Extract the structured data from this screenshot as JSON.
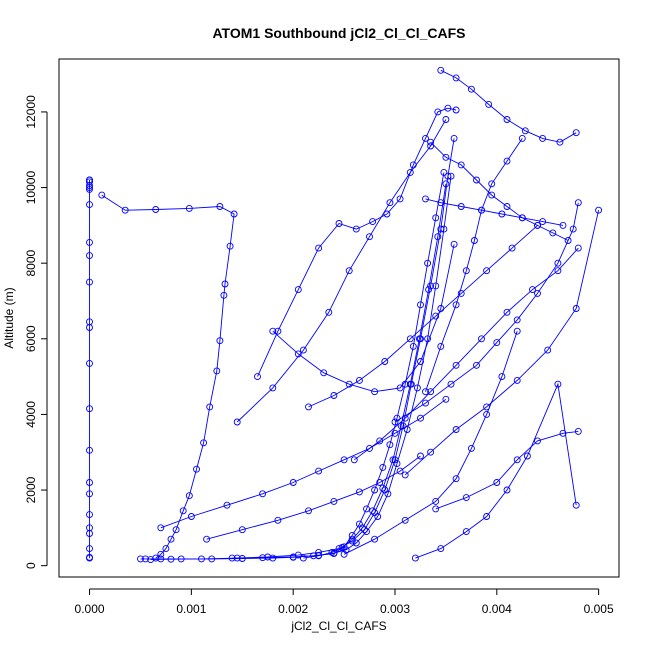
{
  "chart_data": {
    "type": "line",
    "title": "ATOM1 Southbound jCl2_Cl_Cl_CAFS",
    "xlabel": "jCl2_Cl_Cl_CAFS",
    "ylabel": "Altitude (m)",
    "xlim": [
      -0.0003,
      0.0052
    ],
    "ylim": [
      -300,
      13400
    ],
    "x_ticks": [
      0.0,
      0.001,
      0.002,
      0.003,
      0.004,
      0.005
    ],
    "x_tick_labels": [
      "0.000",
      "0.001",
      "0.002",
      "0.003",
      "0.004",
      "0.005"
    ],
    "y_ticks": [
      0,
      2000,
      4000,
      6000,
      8000,
      10000,
      12000
    ],
    "y_tick_labels": [
      "0",
      "2000",
      "4000",
      "6000",
      "8000",
      "10000",
      "12000"
    ],
    "grid": false,
    "markers": "open-circle",
    "series_color": "#0000ff",
    "series": [
      {
        "x": [
          0.0,
          0.0,
          0.0,
          0.0,
          0.0,
          0.0,
          0.0,
          0.0,
          0.0,
          0.0,
          0.0,
          0.0,
          0.0,
          0.0,
          0.0,
          0.0,
          0.0,
          0.0,
          0.0,
          0.0,
          0.0,
          0.0,
          0.0
        ],
        "y": [
          200,
          220,
          450,
          850,
          1000,
          1350,
          1900,
          2200,
          3050,
          4150,
          5350,
          6300,
          6450,
          7500,
          8200,
          8550,
          9550,
          9950,
          10050,
          10200,
          10200,
          10150,
          10000
        ]
      },
      {
        "x": [
          0.00012,
          0.00035,
          0.00065,
          0.00098,
          0.00128,
          0.00142,
          0.00138,
          0.00133,
          0.00132,
          0.00128,
          0.00125,
          0.00118,
          0.00112,
          0.00105,
          0.00098,
          0.00092,
          0.00085,
          0.0008,
          0.00075,
          0.0007,
          0.00065
        ],
        "y": [
          9800,
          9400,
          9420,
          9450,
          9500,
          9300,
          8450,
          7450,
          7150,
          5950,
          5150,
          4200,
          3250,
          2550,
          1850,
          1450,
          950,
          700,
          450,
          300,
          200
        ]
      },
      {
        "x": [
          0.0005,
          0.00055,
          0.0007,
          0.0009,
          0.0012,
          0.0015,
          0.0018,
          0.002,
          0.0022,
          0.0024,
          0.0025,
          0.00258,
          0.00265,
          0.00272,
          0.0028,
          0.00288,
          0.00295,
          0.00302,
          0.0031,
          0.00318,
          0.00325,
          0.00332,
          0.0034,
          0.00348
        ],
        "y": [
          180,
          180,
          180,
          180,
          180,
          190,
          200,
          220,
          260,
          320,
          500,
          800,
          1100,
          1500,
          2000,
          2600,
          3200,
          3900,
          4800,
          5800,
          6900,
          8000,
          9200,
          10400
        ]
      },
      {
        "x": [
          0.0006,
          0.0008,
          0.0011,
          0.00145,
          0.00175,
          0.00205,
          0.00225,
          0.00245,
          0.00258,
          0.0027,
          0.0028,
          0.0029,
          0.003,
          0.00308,
          0.00316,
          0.00325,
          0.00335,
          0.00345,
          0.00352,
          0.00358
        ],
        "y": [
          160,
          170,
          180,
          200,
          230,
          280,
          350,
          450,
          650,
          950,
          1400,
          2000,
          2800,
          3700,
          4800,
          6000,
          7400,
          8900,
          10300,
          11300
        ]
      },
      {
        "x": [
          0.0014,
          0.0017,
          0.002,
          0.00225,
          0.0024,
          0.00252,
          0.00262,
          0.00272,
          0.00283,
          0.00293,
          0.00302,
          0.00312,
          0.00322,
          0.00332,
          0.0034,
          0.00348,
          0.00355
        ],
        "y": [
          200,
          210,
          230,
          270,
          330,
          420,
          600,
          900,
          1300,
          1900,
          2700,
          3600,
          4700,
          6000,
          7400,
          8900,
          10300
        ]
      },
      {
        "x": [
          0.0021,
          0.00225,
          0.00238,
          0.00248,
          0.00258,
          0.00268,
          0.00278,
          0.00288,
          0.00298,
          0.00306,
          0.00315,
          0.00324,
          0.00333,
          0.00342,
          0.0035
        ],
        "y": [
          200,
          260,
          350,
          480,
          700,
          1000,
          1450,
          2050,
          2800,
          3700,
          4800,
          6000,
          7300,
          8700,
          10100
        ]
      },
      {
        "x": [
          0.00165,
          0.00185,
          0.00205,
          0.00225,
          0.00245,
          0.00262,
          0.00278,
          0.00292,
          0.00305,
          0.00318,
          0.0033,
          0.00342,
          0.00352,
          0.0036
        ],
        "y": [
          5000,
          6200,
          7300,
          8400,
          9050,
          8900,
          9100,
          9300,
          9700,
          10600,
          11300,
          12000,
          12100,
          12050
        ]
      },
      {
        "x": [
          0.00145,
          0.0018,
          0.0021,
          0.00235,
          0.00255,
          0.00275,
          0.00295,
          0.00315,
          0.00335,
          0.0035
        ],
        "y": [
          3800,
          4700,
          5700,
          6700,
          7800,
          8700,
          9600,
          10400,
          11100,
          11800
        ]
      },
      {
        "x": [
          0.0018,
          0.00205,
          0.0023,
          0.00255,
          0.0028,
          0.00305,
          0.00325,
          0.00345,
          0.00358
        ],
        "y": [
          6200,
          5600,
          5100,
          4800,
          4600,
          4700,
          5400,
          6800,
          8500
        ]
      },
      {
        "x": [
          0.0033,
          0.00345,
          0.0036,
          0.0037,
          0.00378,
          0.00385,
          0.00395,
          0.0041,
          0.00425
        ],
        "y": [
          4600,
          5800,
          6900,
          7800,
          8600,
          9400,
          10100,
          10700,
          11300
        ]
      },
      {
        "x": [
          0.003,
          0.0033,
          0.00355,
          0.0038,
          0.004,
          0.0042,
          0.0044,
          0.0046,
          0.00475,
          0.0048
        ],
        "y": [
          3800,
          4300,
          4800,
          5300,
          5900,
          6500,
          7200,
          8000,
          8900,
          9600
        ]
      },
      {
        "x": [
          0.0031,
          0.00335,
          0.0036,
          0.0039,
          0.0042,
          0.0045,
          0.00478,
          0.005
        ],
        "y": [
          2400,
          3000,
          3600,
          4200,
          4900,
          5700,
          6800,
          9400
        ]
      },
      {
        "x": [
          0.0034,
          0.0037,
          0.004,
          0.0042,
          0.0044,
          0.00465,
          0.0048
        ],
        "y": [
          1500,
          1800,
          2200,
          2800,
          3300,
          3500,
          3550
        ]
      },
      {
        "x": [
          0.0032,
          0.00345,
          0.0037,
          0.0039,
          0.0041,
          0.0043,
          0.0046,
          0.00478
        ],
        "y": [
          200,
          450,
          900,
          1300,
          2000,
          2900,
          4800,
          1600
        ]
      },
      {
        "x": [
          0.0025,
          0.0028,
          0.0031,
          0.0034,
          0.0036,
          0.00375,
          0.0039,
          0.00405,
          0.0042
        ],
        "y": [
          300,
          700,
          1200,
          1700,
          2300,
          3100,
          4000,
          5000,
          6200
        ]
      },
      {
        "x": [
          0.00335,
          0.0035,
          0.00365,
          0.0038,
          0.00395,
          0.0041,
          0.00425,
          0.0044,
          0.00455,
          0.0047
        ],
        "y": [
          11200,
          10800,
          10600,
          10200,
          9800,
          9500,
          9200,
          9000,
          8800,
          8600
        ]
      },
      {
        "x": [
          0.00345,
          0.0036,
          0.00375,
          0.00392,
          0.0041,
          0.00428,
          0.00445,
          0.00462,
          0.00478
        ],
        "y": [
          13100,
          12900,
          12600,
          12200,
          11800,
          11500,
          11300,
          11200,
          11450
        ]
      },
      {
        "x": [
          0.0033,
          0.00345,
          0.00365,
          0.00385,
          0.00405,
          0.00425,
          0.00445,
          0.00465
        ],
        "y": [
          9700,
          9600,
          9500,
          9400,
          9300,
          9200,
          9100,
          9000
        ]
      },
      {
        "x": [
          0.00115,
          0.0015,
          0.00185,
          0.00215,
          0.0024,
          0.00265,
          0.00285,
          0.00305,
          0.00325
        ],
        "y": [
          700,
          950,
          1200,
          1450,
          1700,
          1950,
          2200,
          2500,
          2900
        ]
      },
      {
        "x": [
          0.0007,
          0.001,
          0.00135,
          0.0017,
          0.002,
          0.00225,
          0.0025,
          0.00275,
          0.003,
          0.00325,
          0.0035
        ],
        "y": [
          1000,
          1300,
          1600,
          1900,
          2200,
          2500,
          2800,
          3100,
          3500,
          3900,
          4400
        ]
      },
      {
        "x": [
          0.00215,
          0.0024,
          0.00265,
          0.0029,
          0.00315,
          0.0034,
          0.00365,
          0.0039,
          0.00415,
          0.0044
        ],
        "y": [
          4200,
          4500,
          4900,
          5400,
          6000,
          6600,
          7200,
          7800,
          8400,
          9000
        ]
      },
      {
        "x": [
          0.0026,
          0.00285,
          0.0031,
          0.00335,
          0.0036,
          0.00385,
          0.0041,
          0.00435,
          0.0046,
          0.0048
        ],
        "y": [
          2800,
          3300,
          3900,
          4600,
          5300,
          6000,
          6700,
          7300,
          7800,
          8400
        ]
      }
    ]
  }
}
